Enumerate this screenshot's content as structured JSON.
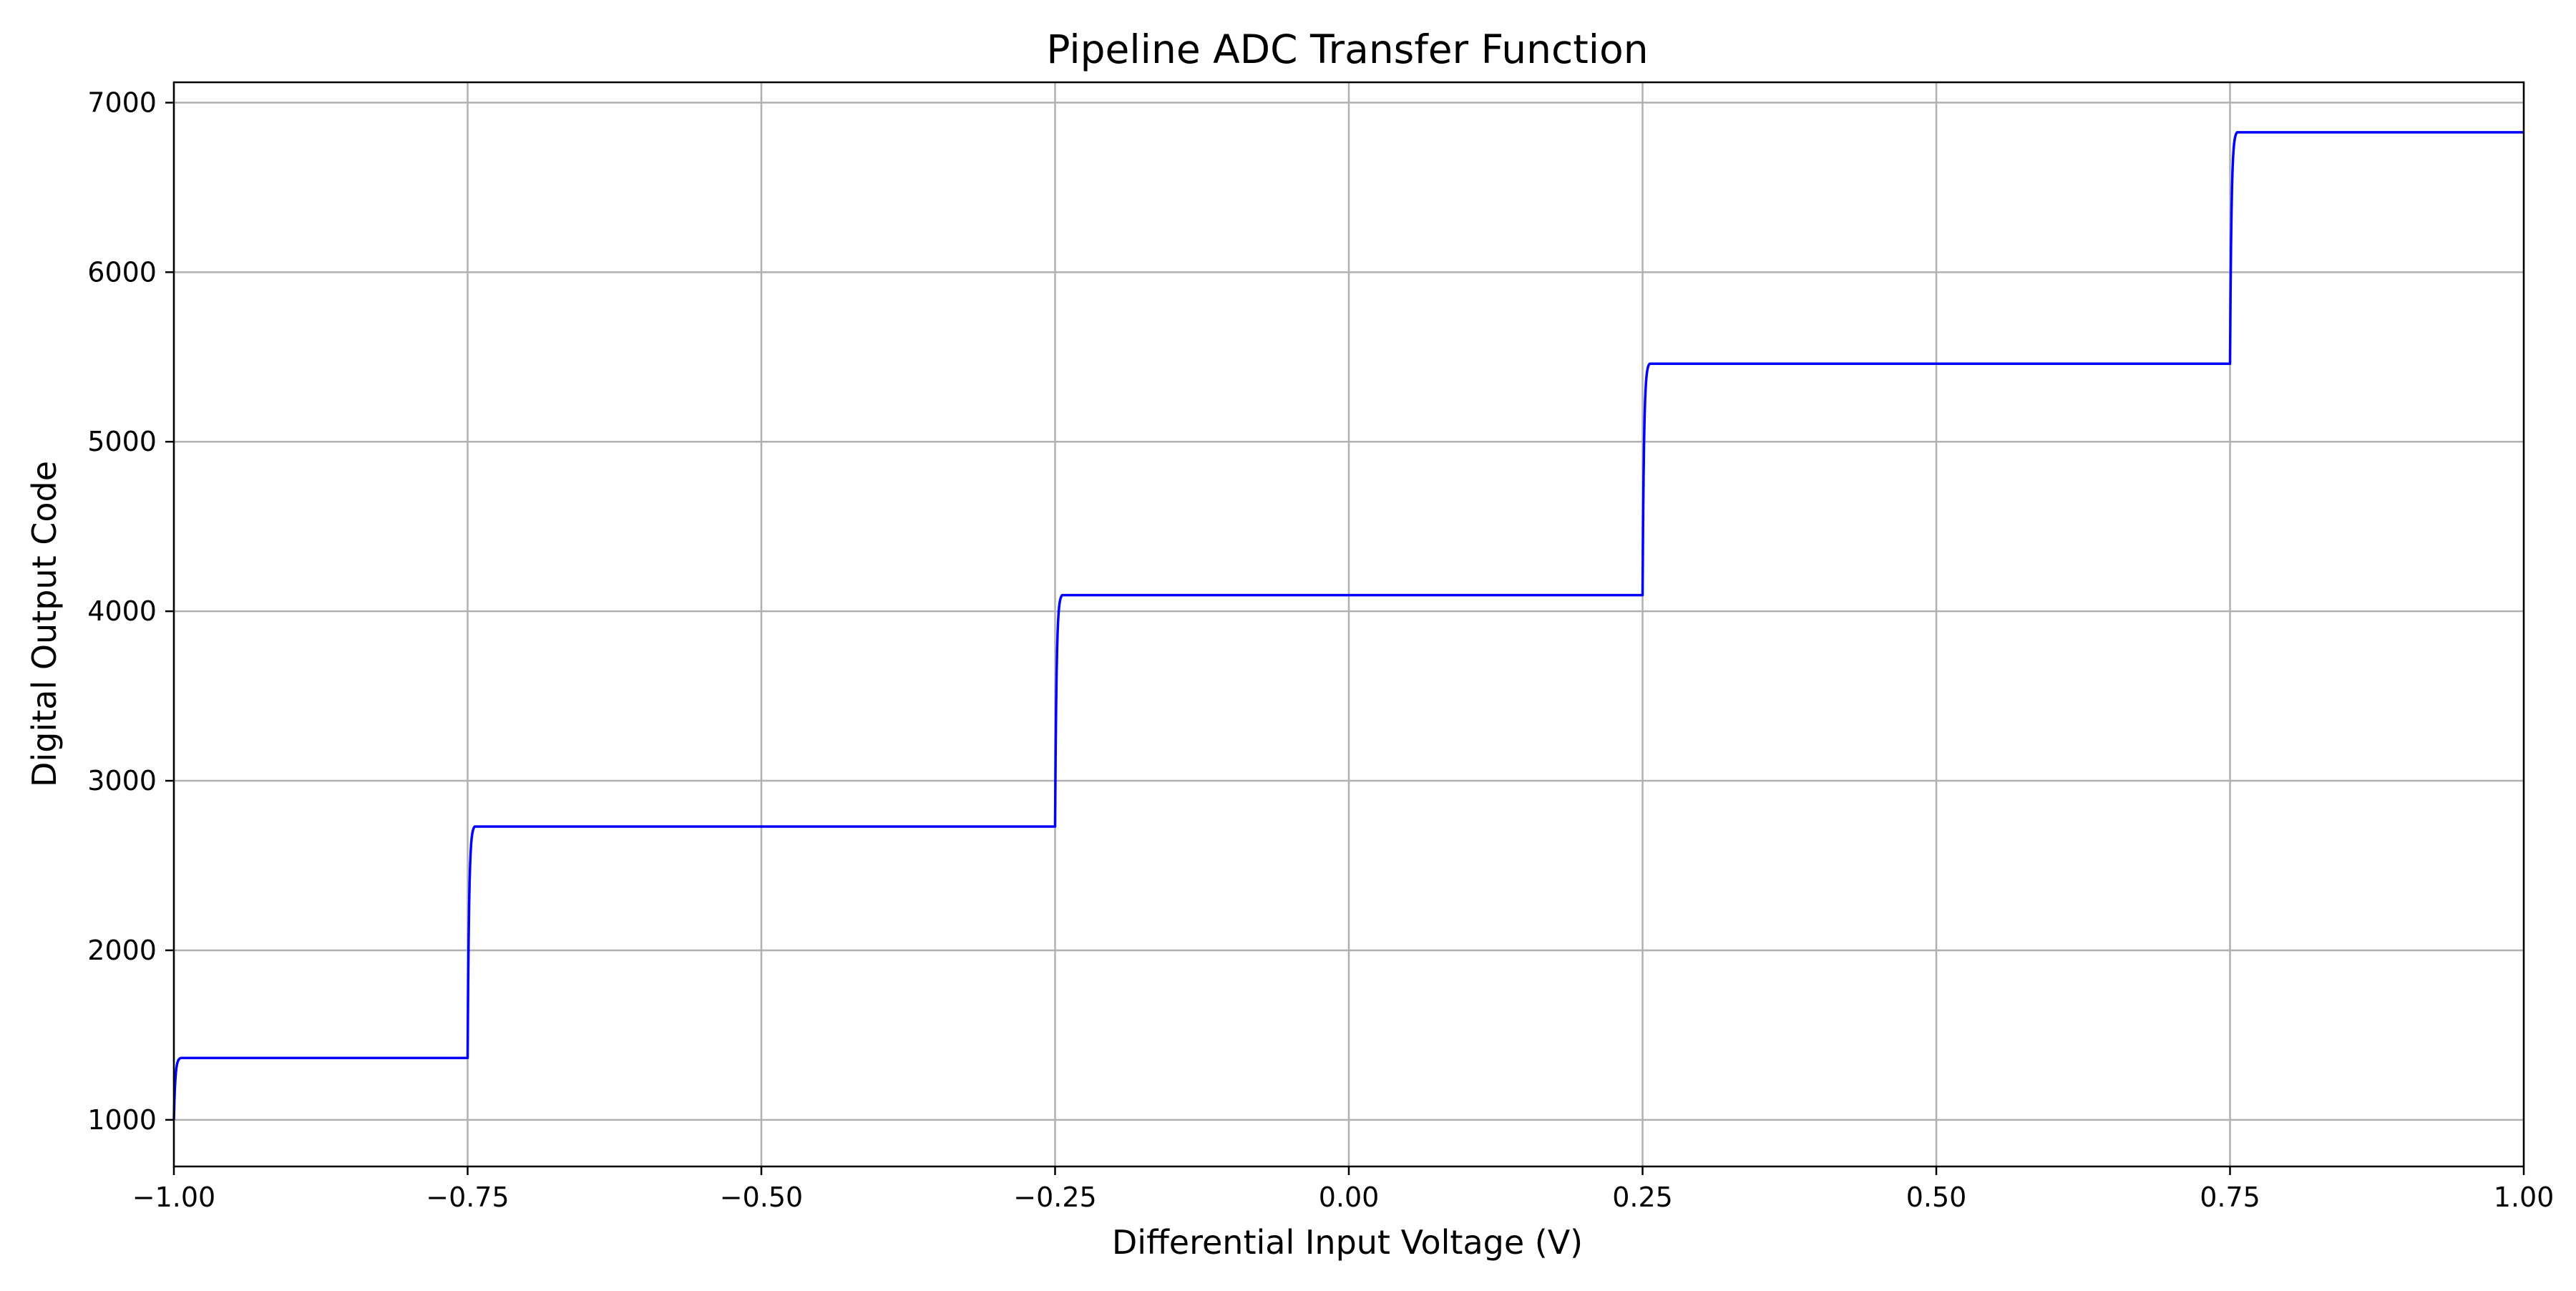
{
  "chart_data": {
    "type": "line",
    "title": "Pipeline ADC Transfer Function",
    "xlabel": "Differential Input Voltage (V)",
    "ylabel": "Digital Output Code",
    "xlim": [
      -1.0,
      1.0
    ],
    "ylim": [
      725,
      7120
    ],
    "xticks": [
      -1.0,
      -0.75,
      -0.5,
      -0.25,
      0.0,
      0.25,
      0.5,
      0.75,
      1.0
    ],
    "xtick_labels": [
      "−1.00",
      "−0.75",
      "−0.50",
      "−0.25",
      "0.00",
      "0.25",
      "0.50",
      "0.75",
      "1.00"
    ],
    "yticks": [
      1000,
      2000,
      3000,
      4000,
      5000,
      6000,
      7000
    ],
    "ytick_labels": [
      "1000",
      "2000",
      "3000",
      "4000",
      "5000",
      "6000",
      "7000"
    ],
    "grid": true,
    "line_color": "#0000ff",
    "series": [
      {
        "steps": [
          {
            "x_start": -1.0,
            "x_end": -0.75,
            "value": 1365
          },
          {
            "x_start": -0.75,
            "x_end": -0.25,
            "value": 2730
          },
          {
            "x_start": -0.25,
            "x_end": 0.25,
            "value": 4095
          },
          {
            "x_start": 0.25,
            "x_end": 0.75,
            "value": 5460
          },
          {
            "x_start": 0.75,
            "x_end": 1.0,
            "value": 6825
          }
        ],
        "start_value": 1000
      }
    ]
  }
}
